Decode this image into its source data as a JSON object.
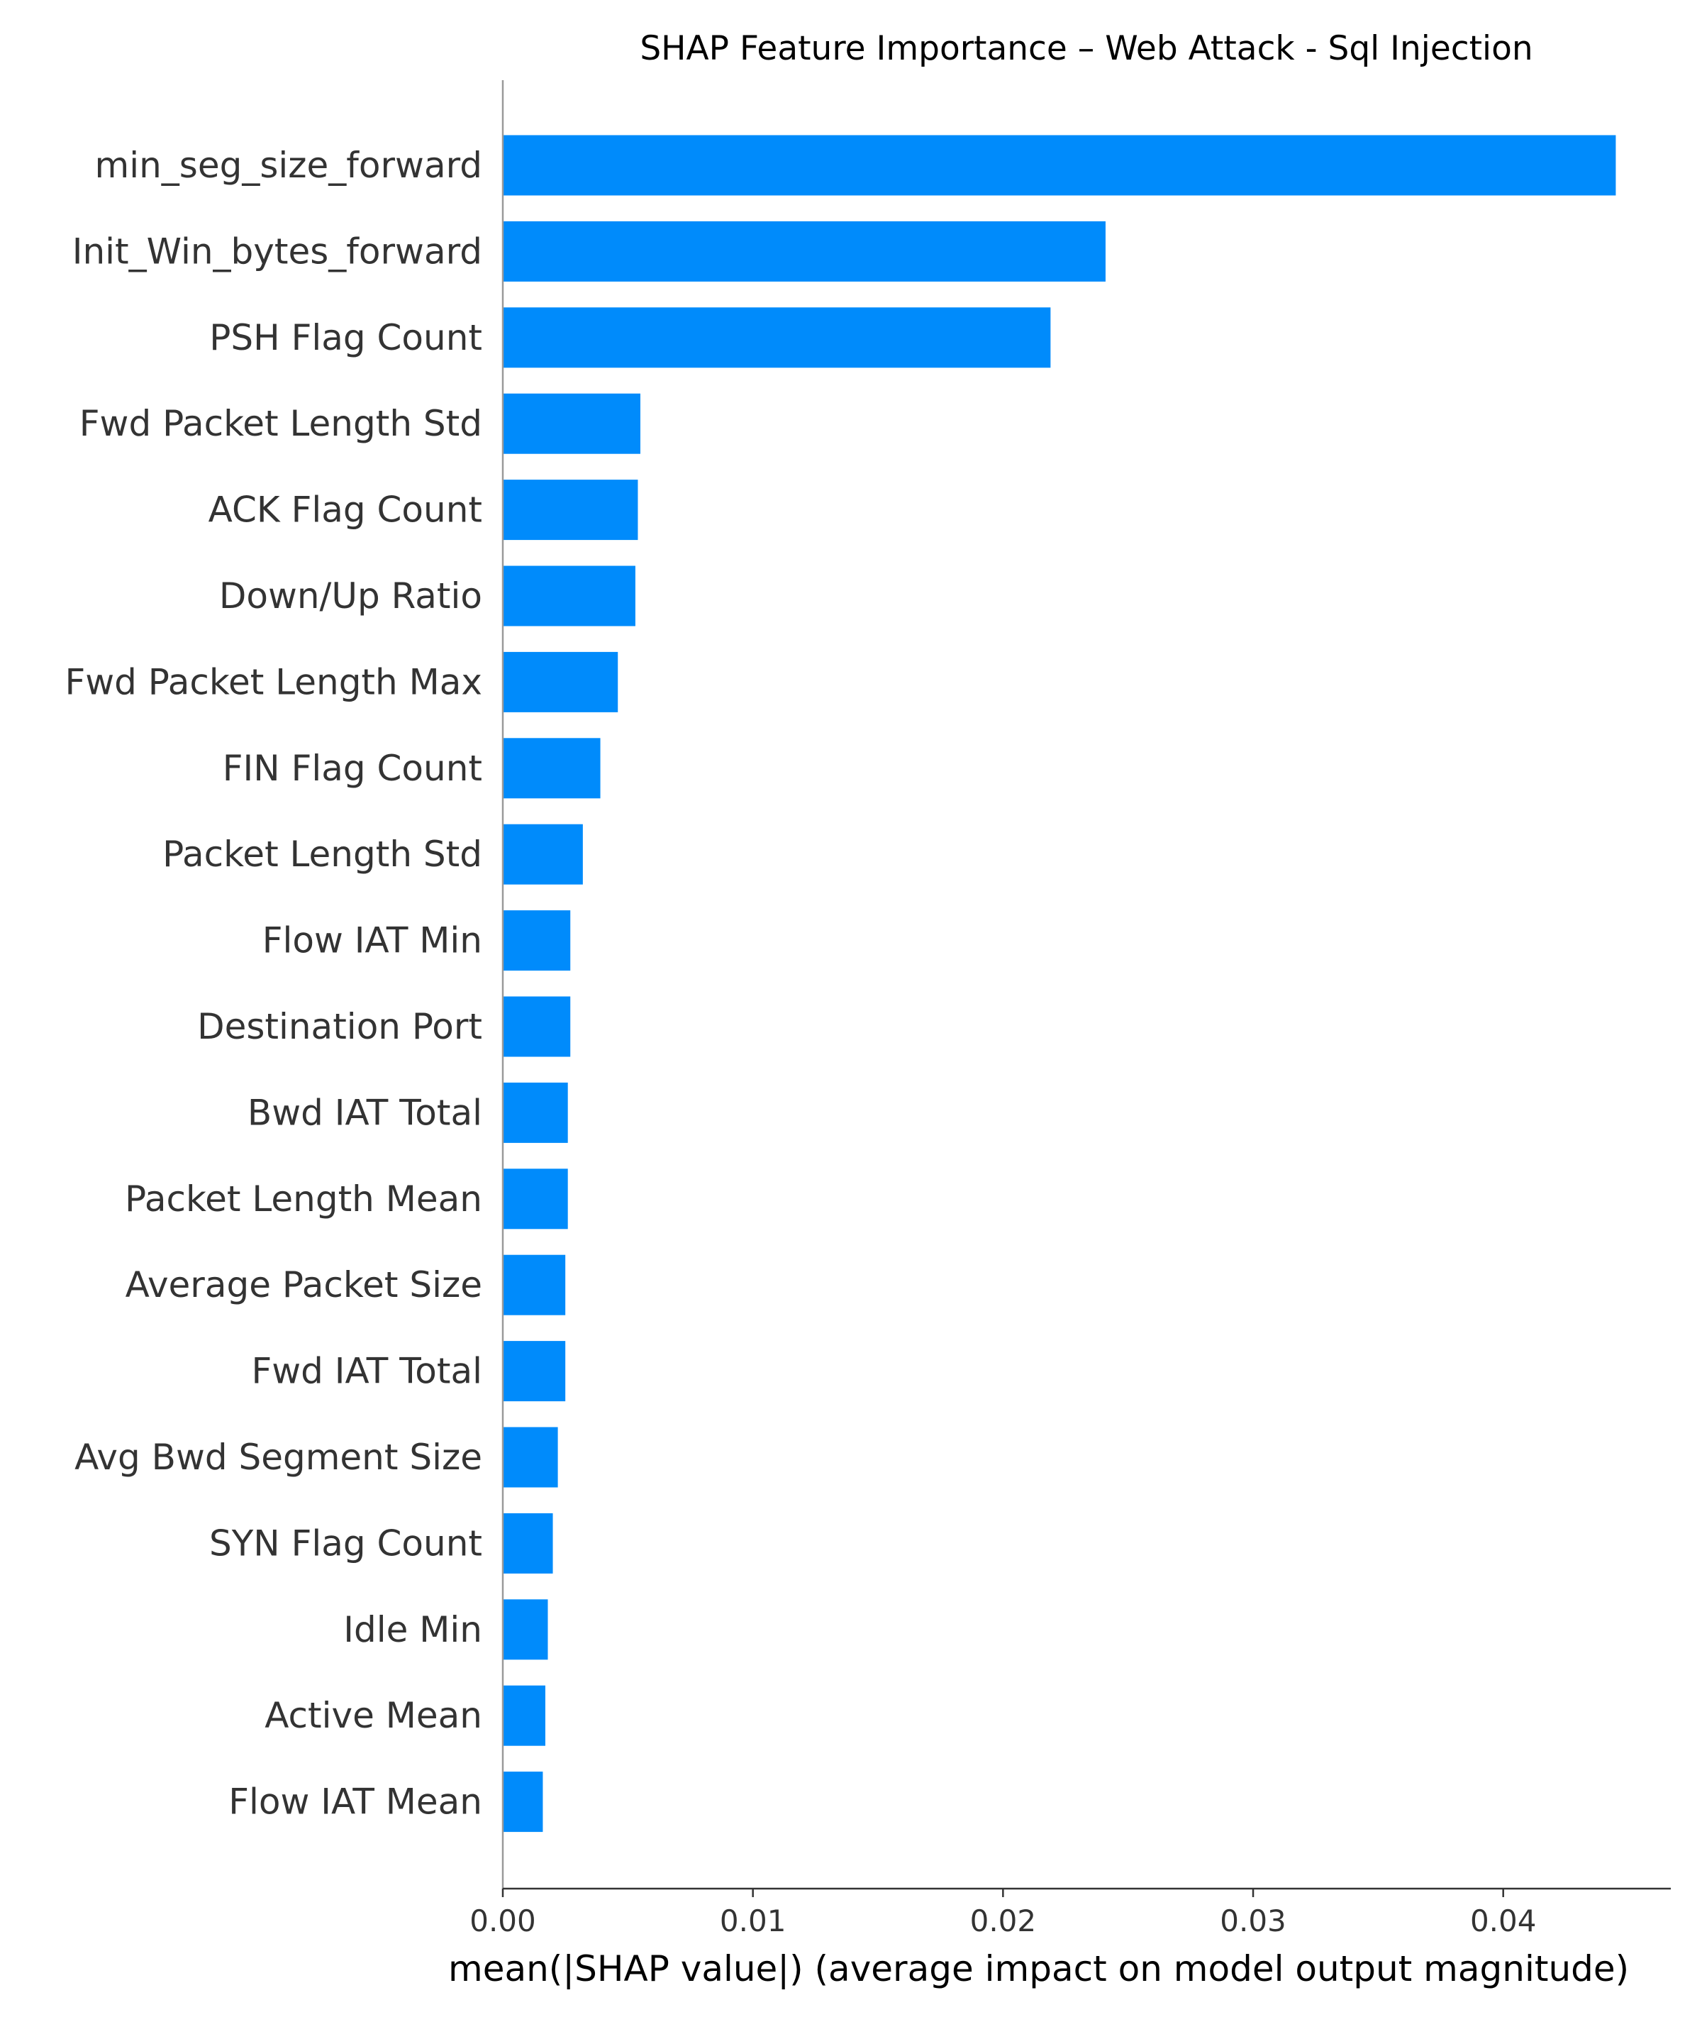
{
  "chart_data": {
    "type": "bar",
    "orientation": "horizontal",
    "title": "SHAP Feature Importance – Web Attack - Sql Injection",
    "xlabel": "mean(|SHAP value|) (average impact on model output magnitude)",
    "ylabel": "",
    "categories": [
      "min_seg_size_forward",
      "Init_Win_bytes_forward",
      "PSH Flag Count",
      "Fwd Packet Length Std",
      "ACK Flag Count",
      "Down/Up Ratio",
      "Fwd Packet Length Max",
      "FIN Flag Count",
      "Packet Length Std",
      "Flow IAT Min",
      "Destination Port",
      "Bwd IAT Total",
      "Packet Length Mean",
      "Average Packet Size",
      "Fwd IAT Total",
      "Avg Bwd Segment Size",
      "SYN Flag Count",
      "Idle Min",
      "Active Mean",
      "Flow IAT Mean"
    ],
    "values": [
      0.0445,
      0.0241,
      0.0219,
      0.0055,
      0.0054,
      0.0053,
      0.0046,
      0.0039,
      0.0032,
      0.0027,
      0.0027,
      0.0026,
      0.0026,
      0.0025,
      0.0025,
      0.0022,
      0.002,
      0.0018,
      0.0017,
      0.0016
    ],
    "xlim": [
      0.0,
      0.0467
    ],
    "xticks": [
      0.0,
      0.01,
      0.02,
      0.03,
      0.04
    ],
    "xtick_labels": [
      "0.00",
      "0.01",
      "0.02",
      "0.03",
      "0.04"
    ],
    "bar_color": "#008bfb",
    "grid": false,
    "legend": "none"
  }
}
